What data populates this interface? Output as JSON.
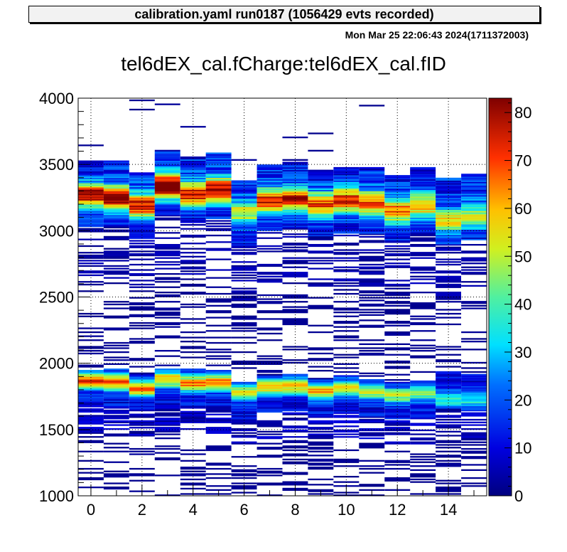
{
  "header": {
    "banner": "calibration.yaml  run0187 (1056429 evts recorded)",
    "timestamp": "Mon Mar 25 22:06:43 2024(1711372003)"
  },
  "chart_data": {
    "type": "heatmap",
    "title": "tel6dEX_cal.fCharge:tel6dEX_cal.fID",
    "xlabel": "",
    "ylabel": "",
    "x_categories": [
      0,
      1,
      2,
      3,
      4,
      5,
      6,
      7,
      8,
      9,
      10,
      11,
      12,
      13,
      14,
      15
    ],
    "xlim": [
      -0.5,
      15.5
    ],
    "ylim": [
      1000,
      4000
    ],
    "x_ticks": [
      0,
      2,
      4,
      6,
      8,
      10,
      12,
      14
    ],
    "y_ticks": [
      1000,
      1500,
      2000,
      2500,
      3000,
      3500,
      4000
    ],
    "colorbar": {
      "min": 0,
      "max": 83,
      "ticks": [
        0,
        10,
        20,
        30,
        40,
        50,
        60,
        70,
        80
      ]
    },
    "grid": true,
    "series": [
      {
        "x": 0,
        "upper_peak": 3270,
        "upper_peak_count": 68,
        "upper_edge": 3530,
        "lower_peak": 1870,
        "lower_peak_count": 60,
        "lower_edge": 1950
      },
      {
        "x": 1,
        "upper_peak": 3250,
        "upper_peak_count": 74,
        "upper_edge": 3530,
        "lower_peak": 1860,
        "lower_peak_count": 56,
        "lower_edge": 1960
      },
      {
        "x": 2,
        "upper_peak": 3190,
        "upper_peak_count": 64,
        "upper_edge": 3440,
        "lower_peak": 1810,
        "lower_peak_count": 52,
        "lower_edge": 1920
      },
      {
        "x": 3,
        "upper_peak": 3340,
        "upper_peak_count": 82,
        "upper_edge": 3610,
        "lower_peak": 1880,
        "lower_peak_count": 50,
        "lower_edge": 1960
      },
      {
        "x": 4,
        "upper_peak": 3280,
        "upper_peak_count": 66,
        "upper_edge": 3560,
        "lower_peak": 1850,
        "lower_peak_count": 54,
        "lower_edge": 1960
      },
      {
        "x": 5,
        "upper_peak": 3310,
        "upper_peak_count": 70,
        "upper_edge": 3590,
        "lower_peak": 1860,
        "lower_peak_count": 55,
        "lower_edge": 1950
      },
      {
        "x": 6,
        "upper_peak": 3140,
        "upper_peak_count": 40,
        "upper_edge": 3380,
        "lower_peak": 1780,
        "lower_peak_count": 40,
        "lower_edge": 1860
      },
      {
        "x": 7,
        "upper_peak": 3230,
        "upper_peak_count": 64,
        "upper_edge": 3500,
        "lower_peak": 1820,
        "lower_peak_count": 48,
        "lower_edge": 1910
      },
      {
        "x": 8,
        "upper_peak": 3240,
        "upper_peak_count": 62,
        "upper_edge": 3520,
        "lower_peak": 1830,
        "lower_peak_count": 48,
        "lower_edge": 1920
      },
      {
        "x": 9,
        "upper_peak": 3200,
        "upper_peak_count": 58,
        "upper_edge": 3460,
        "lower_peak": 1790,
        "lower_peak_count": 50,
        "lower_edge": 1880
      },
      {
        "x": 10,
        "upper_peak": 3230,
        "upper_peak_count": 62,
        "upper_edge": 3480,
        "lower_peak": 1810,
        "lower_peak_count": 44,
        "lower_edge": 1910
      },
      {
        "x": 11,
        "upper_peak": 3210,
        "upper_peak_count": 58,
        "upper_edge": 3480,
        "lower_peak": 1790,
        "lower_peak_count": 40,
        "lower_edge": 1880
      },
      {
        "x": 12,
        "upper_peak": 3150,
        "upper_peak_count": 55,
        "upper_edge": 3420,
        "lower_peak": 1760,
        "lower_peak_count": 38,
        "lower_edge": 1860
      },
      {
        "x": 13,
        "upper_peak": 3190,
        "upper_peak_count": 50,
        "upper_edge": 3480,
        "lower_peak": 1770,
        "lower_peak_count": 32,
        "lower_edge": 1870
      },
      {
        "x": 14,
        "upper_peak": 3080,
        "upper_peak_count": 42,
        "upper_edge": 3400,
        "lower_peak": 1730,
        "lower_peak_count": 28,
        "lower_edge": 1940
      },
      {
        "x": 15,
        "upper_peak": 3110,
        "upper_peak_count": 38,
        "upper_edge": 3430,
        "lower_peak": 1720,
        "lower_peak_count": 24,
        "lower_edge": 1920
      }
    ]
  }
}
